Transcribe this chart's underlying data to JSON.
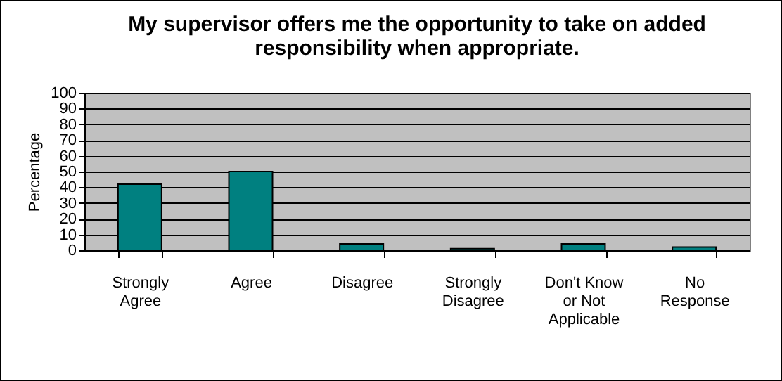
{
  "chart_data": {
    "type": "bar",
    "title": "My supervisor offers me the opportunity to take on added responsibility when appropriate.",
    "ylabel": "Percentage",
    "categories": [
      "Strongly Agree",
      "Agree",
      "Disagree",
      "Strongly Disagree",
      "Don't Know or Not Applicable",
      "No Response"
    ],
    "values": [
      42,
      50,
      4,
      1,
      4,
      2
    ],
    "color": "#008080",
    "ylim": [
      0,
      100
    ],
    "yticks": [
      0,
      10,
      20,
      30,
      40,
      50,
      60,
      70,
      80,
      90,
      100
    ],
    "grid": "y"
  }
}
